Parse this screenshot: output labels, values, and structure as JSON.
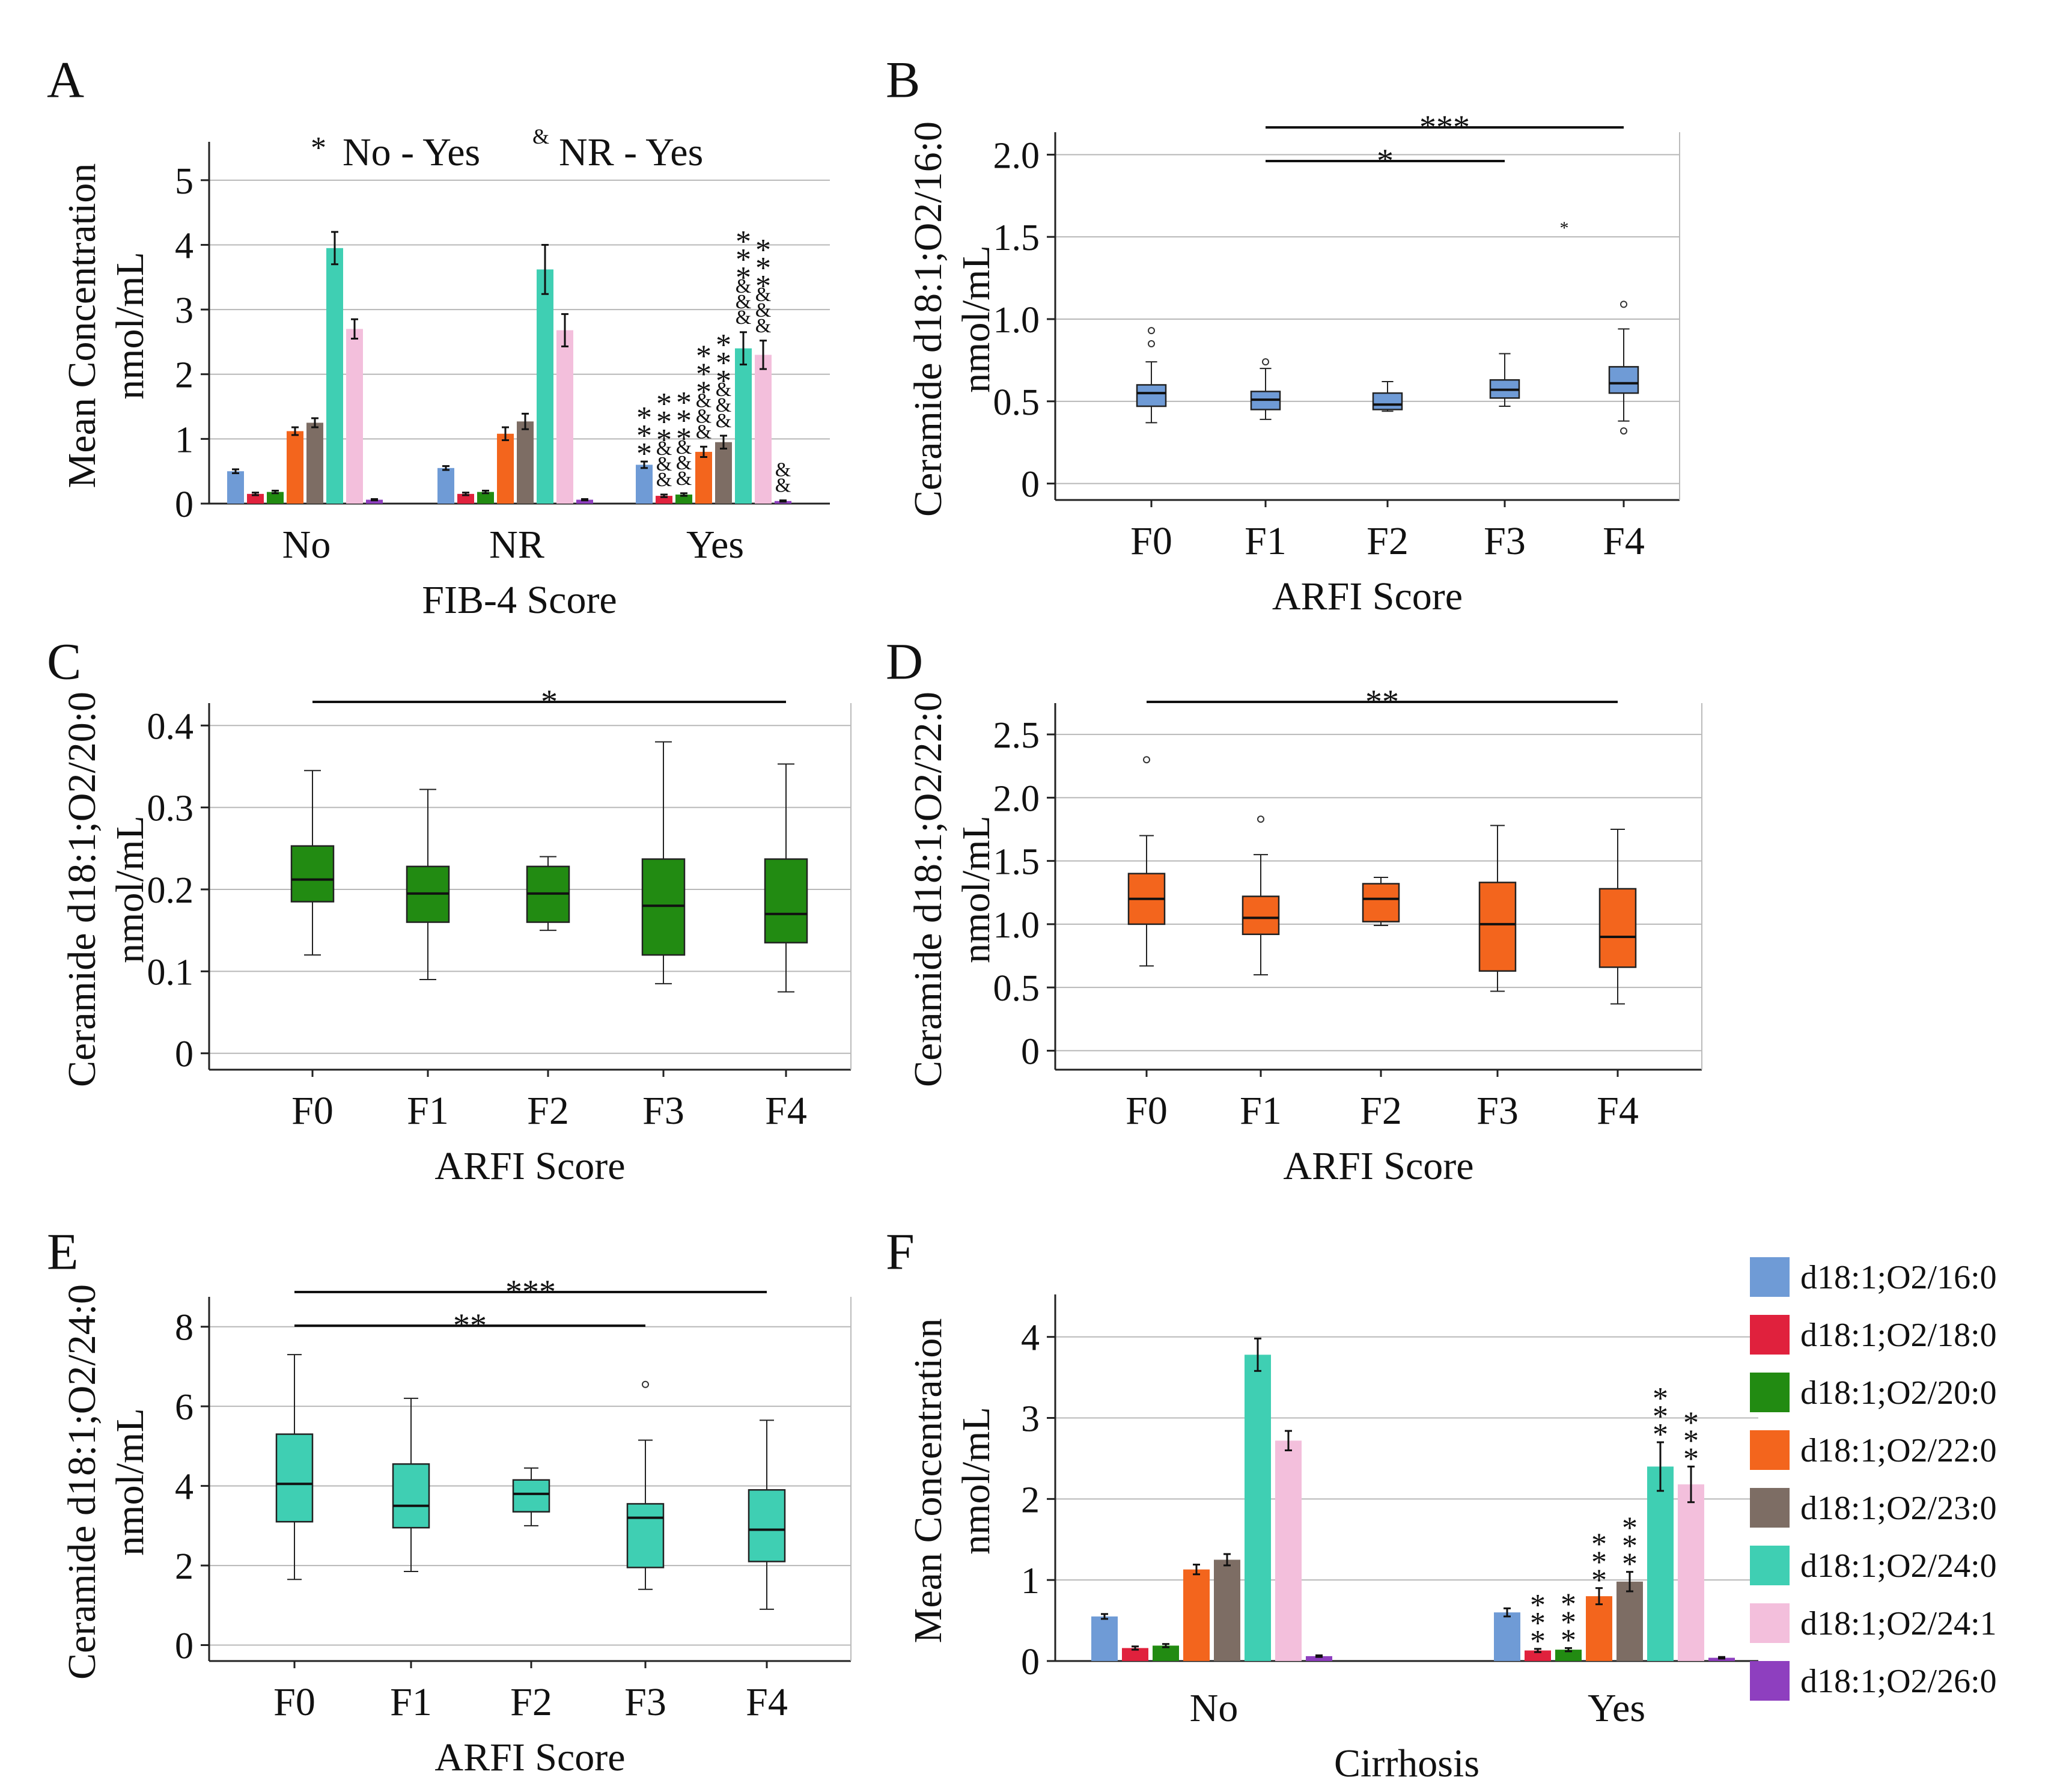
{
  "colors": {
    "d18:1;O2/16:0": "#6f9bd6",
    "d18:1;O2/18:0": "#e0213d",
    "d18:1;O2/20:0": "#228b12",
    "d18:1;O2/22:0": "#f3651d",
    "d18:1;O2/23:0": "#7d6d64",
    "d18:1;O2/24:0": "#3fcfb3",
    "d18:1;O2/24:1": "#f3bfdc",
    "d18:1;O2/26:0": "#8e3fbf"
  },
  "legend": {
    "entries": [
      "d18:1;O2/16:0",
      "d18:1;O2/18:0",
      "d18:1;O2/20:0",
      "d18:1;O2/22:0",
      "d18:1;O2/23:0",
      "d18:1;O2/24:0",
      "d18:1;O2/24:1",
      "d18:1;O2/26:0"
    ]
  },
  "chart_data": [
    {
      "panel": "A",
      "type": "bar",
      "xlabel": "FIB-4  Score",
      "ylabel": [
        "Mean Concentration",
        "nmol/mL"
      ],
      "ylim": [
        0,
        5.5
      ],
      "yticks": [
        "0",
        "1",
        "2",
        "3",
        "4",
        "5"
      ],
      "categories": [
        "No",
        "NR",
        "Yes"
      ],
      "annotation": {
        "star": "*",
        "star_text": "No - Yes",
        "amp": "&",
        "amp_text": "NR - Yes"
      },
      "series": [
        {
          "name": "d18:1;O2/16:0",
          "values": [
            0.5,
            0.55,
            0.6
          ],
          "errors": [
            0.03,
            0.03,
            0.05
          ],
          "marks": [
            "",
            "",
            "***"
          ]
        },
        {
          "name": "d18:1;O2/18:0",
          "values": [
            0.15,
            0.15,
            0.12
          ],
          "errors": [
            0.02,
            0.02,
            0.02
          ],
          "marks": [
            "",
            "",
            "***&&&"
          ]
        },
        {
          "name": "d18:1;O2/20:0",
          "values": [
            0.18,
            0.18,
            0.14
          ],
          "errors": [
            0.02,
            0.02,
            0.02
          ],
          "marks": [
            "",
            "",
            "***&&&"
          ]
        },
        {
          "name": "d18:1;O2/22:0",
          "values": [
            1.12,
            1.08,
            0.8
          ],
          "errors": [
            0.06,
            0.1,
            0.08
          ],
          "marks": [
            "",
            "",
            "***&&&"
          ]
        },
        {
          "name": "d18:1;O2/23:0",
          "values": [
            1.25,
            1.27,
            0.95
          ],
          "errors": [
            0.07,
            0.12,
            0.1
          ],
          "marks": [
            "",
            "",
            "***&&&"
          ]
        },
        {
          "name": "d18:1;O2/24:0",
          "values": [
            3.95,
            3.62,
            2.4
          ],
          "errors": [
            0.25,
            0.38,
            0.25
          ],
          "marks": [
            "",
            "",
            "***&&&"
          ]
        },
        {
          "name": "d18:1;O2/24:1",
          "values": [
            2.7,
            2.68,
            2.3
          ],
          "errors": [
            0.15,
            0.25,
            0.22
          ],
          "marks": [
            "",
            "",
            "***&&&"
          ]
        },
        {
          "name": "d18:1;O2/26:0",
          "values": [
            0.06,
            0.06,
            0.04
          ],
          "errors": [
            0.01,
            0.01,
            0.01
          ],
          "marks": [
            "",
            "",
            "&&"
          ]
        }
      ]
    },
    {
      "panel": "B",
      "type": "boxplot",
      "xlabel": "ARFI  Score",
      "ylabel": [
        "Ceramide d18:1;O2/16:0",
        "nmol/mL"
      ],
      "ylim": [
        -0.1,
        2.1
      ],
      "yticks": [
        {
          "v": 0,
          "t": "0"
        },
        {
          "v": 0.5,
          "t": "0.5"
        },
        {
          "v": 1,
          "t": "1.0"
        },
        {
          "v": 1.5,
          "t": "1.5"
        },
        {
          "v": 2,
          "t": "2.0"
        }
      ],
      "categories": [
        "F0",
        "F1",
        "F2",
        "F3",
        "F4"
      ],
      "series_name": "d18:1;O2/16:0",
      "boxes": [
        {
          "min": 0.37,
          "q1": 0.47,
          "median": 0.55,
          "q3": 0.6,
          "max": 0.74,
          "outliers": [
            0.85,
            0.93
          ]
        },
        {
          "min": 0.39,
          "q1": 0.45,
          "median": 0.51,
          "q3": 0.56,
          "max": 0.7,
          "outliers": [
            0.74
          ]
        },
        {
          "min": 0.44,
          "q1": 0.45,
          "median": 0.48,
          "q3": 0.55,
          "max": 0.62,
          "outliers": []
        },
        {
          "min": 0.47,
          "q1": 0.52,
          "median": 0.57,
          "q3": 0.63,
          "max": 0.79,
          "outliers": []
        },
        {
          "min": 0.38,
          "q1": 0.55,
          "median": 0.61,
          "q3": 0.71,
          "max": 0.94,
          "outliers": [
            0.32,
            1.09
          ]
        }
      ],
      "extra_points": [
        {
          "cat": 3.5,
          "v": 1.57,
          "symbol": "*"
        }
      ],
      "significance": [
        {
          "from": 1,
          "to": 3,
          "label": "*"
        },
        {
          "from": 1,
          "to": 4,
          "label": "***"
        }
      ]
    },
    {
      "panel": "C",
      "type": "boxplot",
      "xlabel": "ARFI  Score",
      "ylabel": [
        "Ceramide d18:1;O2/20:0",
        "nmol/mL"
      ],
      "ylim": [
        -0.02,
        0.42
      ],
      "yticks": [
        {
          "v": 0,
          "t": "0"
        },
        {
          "v": 0.1,
          "t": "0.1"
        },
        {
          "v": 0.2,
          "t": "0.2"
        },
        {
          "v": 0.3,
          "t": "0.3"
        },
        {
          "v": 0.4,
          "t": "0.4"
        }
      ],
      "categories": [
        "F0",
        "F1",
        "F2",
        "F3",
        "F4"
      ],
      "series_name": "d18:1;O2/20:0",
      "boxes": [
        {
          "min": 0.12,
          "q1": 0.185,
          "median": 0.212,
          "q3": 0.253,
          "max": 0.345,
          "outliers": []
        },
        {
          "min": 0.09,
          "q1": 0.16,
          "median": 0.195,
          "q3": 0.228,
          "max": 0.322,
          "outliers": []
        },
        {
          "min": 0.15,
          "q1": 0.16,
          "median": 0.195,
          "q3": 0.228,
          "max": 0.24,
          "outliers": []
        },
        {
          "min": 0.085,
          "q1": 0.12,
          "median": 0.18,
          "q3": 0.237,
          "max": 0.38,
          "outliers": []
        },
        {
          "min": 0.075,
          "q1": 0.135,
          "median": 0.17,
          "q3": 0.237,
          "max": 0.353,
          "outliers": []
        }
      ],
      "extra_points": [],
      "significance": [
        {
          "from": 0,
          "to": 4,
          "label": "*"
        }
      ]
    },
    {
      "panel": "D",
      "type": "boxplot",
      "xlabel": "ARFI  Score",
      "ylabel": [
        "Ceramide d18:1;O2/22:0",
        "nmol/mL"
      ],
      "ylim": [
        -0.15,
        2.7
      ],
      "yticks": [
        {
          "v": 0,
          "t": "0"
        },
        {
          "v": 0.5,
          "t": "0.5"
        },
        {
          "v": 1,
          "t": "1.0"
        },
        {
          "v": 1.5,
          "t": "1.5"
        },
        {
          "v": 2,
          "t": "2.0"
        },
        {
          "v": 2.5,
          "t": "2.5"
        }
      ],
      "categories": [
        "F0",
        "F1",
        "F2",
        "F3",
        "F4"
      ],
      "series_name": "d18:1;O2/22:0",
      "boxes": [
        {
          "min": 0.67,
          "q1": 1.0,
          "median": 1.2,
          "q3": 1.4,
          "max": 1.7,
          "outliers": [
            2.3
          ]
        },
        {
          "min": 0.6,
          "q1": 0.92,
          "median": 1.05,
          "q3": 1.22,
          "max": 1.55,
          "outliers": [
            1.83
          ]
        },
        {
          "min": 0.99,
          "q1": 1.02,
          "median": 1.2,
          "q3": 1.32,
          "max": 1.37,
          "outliers": []
        },
        {
          "min": 0.47,
          "q1": 0.63,
          "median": 1.0,
          "q3": 1.33,
          "max": 1.78,
          "outliers": []
        },
        {
          "min": 0.37,
          "q1": 0.66,
          "median": 0.9,
          "q3": 1.28,
          "max": 1.75,
          "outliers": []
        }
      ],
      "extra_points": [],
      "significance": [
        {
          "from": 0,
          "to": 4,
          "label": "**"
        }
      ]
    },
    {
      "panel": "E",
      "type": "boxplot",
      "xlabel": "ARFI  Score",
      "ylabel": [
        "Ceramide d18:1;O2/24:0",
        "nmol/mL"
      ],
      "ylim": [
        -0.4,
        8.6
      ],
      "yticks": [
        {
          "v": 0,
          "t": "0"
        },
        {
          "v": 2,
          "t": "2"
        },
        {
          "v": 4,
          "t": "4"
        },
        {
          "v": 6,
          "t": "6"
        },
        {
          "v": 8,
          "t": "8"
        }
      ],
      "categories": [
        "F0",
        "F1",
        "F2",
        "F3",
        "F4"
      ],
      "series_name": "d18:1;O2/24:0",
      "boxes": [
        {
          "min": 1.65,
          "q1": 3.1,
          "median": 4.05,
          "q3": 5.3,
          "max": 7.3,
          "outliers": []
        },
        {
          "min": 1.85,
          "q1": 2.95,
          "median": 3.5,
          "q3": 4.55,
          "max": 6.2,
          "outliers": []
        },
        {
          "min": 3.0,
          "q1": 3.35,
          "median": 3.8,
          "q3": 4.15,
          "max": 4.45,
          "outliers": []
        },
        {
          "min": 1.4,
          "q1": 1.95,
          "median": 3.2,
          "q3": 3.55,
          "max": 5.15,
          "outliers": [
            6.55
          ]
        },
        {
          "min": 0.9,
          "q1": 2.1,
          "median": 2.9,
          "q3": 3.9,
          "max": 5.65,
          "outliers": []
        }
      ],
      "extra_points": [],
      "significance": [
        {
          "from": 0,
          "to": 3,
          "label": "**"
        },
        {
          "from": 0,
          "to": 4,
          "label": "***"
        }
      ]
    },
    {
      "panel": "F",
      "type": "bar",
      "xlabel": "Cirrhosis",
      "ylabel": [
        "Mean Concentration",
        "nmol/mL"
      ],
      "ylim": [
        0,
        4.45
      ],
      "yticks": [
        "0",
        "1",
        "2",
        "3",
        "4"
      ],
      "categories": [
        "No",
        "Yes"
      ],
      "series": [
        {
          "name": "d18:1;O2/16:0",
          "values": [
            0.55,
            0.6
          ],
          "errors": [
            0.03,
            0.05
          ],
          "marks": [
            "",
            ""
          ]
        },
        {
          "name": "d18:1;O2/18:0",
          "values": [
            0.16,
            0.13
          ],
          "errors": [
            0.02,
            0.02
          ],
          "marks": [
            "",
            "***"
          ]
        },
        {
          "name": "d18:1;O2/20:0",
          "values": [
            0.19,
            0.14
          ],
          "errors": [
            0.02,
            0.02
          ],
          "marks": [
            "",
            "***"
          ]
        },
        {
          "name": "d18:1;O2/22:0",
          "values": [
            1.13,
            0.8
          ],
          "errors": [
            0.06,
            0.1
          ],
          "marks": [
            "",
            "***"
          ]
        },
        {
          "name": "d18:1;O2/23:0",
          "values": [
            1.25,
            0.98
          ],
          "errors": [
            0.07,
            0.12
          ],
          "marks": [
            "",
            "***"
          ]
        },
        {
          "name": "d18:1;O2/24:0",
          "values": [
            3.78,
            2.4
          ],
          "errors": [
            0.2,
            0.3
          ],
          "marks": [
            "",
            "***"
          ]
        },
        {
          "name": "d18:1;O2/24:1",
          "values": [
            2.72,
            2.18
          ],
          "errors": [
            0.12,
            0.22
          ],
          "marks": [
            "",
            "***"
          ]
        },
        {
          "name": "d18:1;O2/26:0",
          "values": [
            0.06,
            0.04
          ],
          "errors": [
            0.01,
            0.01
          ],
          "marks": [
            "",
            ""
          ]
        }
      ]
    }
  ]
}
